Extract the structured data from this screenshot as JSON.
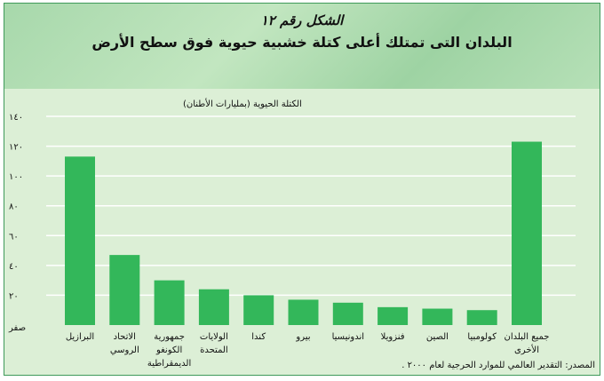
{
  "chart_data": {
    "type": "bar",
    "title": "الشكل رقم ١٢",
    "subtitle": "البلدان التى تمتلك أعلى كتلة خشبية حيوية فوق سطح الأرض",
    "ylabel": "الكتلة الحيوية (بمليارات الأطنان)",
    "ylim": [
      0,
      140
    ],
    "yticks": [
      {
        "value": 0,
        "label": "صفر"
      },
      {
        "value": 20,
        "label": "٢٠"
      },
      {
        "value": 40,
        "label": "٤٠"
      },
      {
        "value": 60,
        "label": "٦٠"
      },
      {
        "value": 80,
        "label": "٨٠"
      },
      {
        "value": 100,
        "label": "١٠٠"
      },
      {
        "value": 120,
        "label": "١٢٠"
      },
      {
        "value": 140,
        "label": "١٤٠"
      }
    ],
    "grid": true,
    "categories": [
      "البرازيل",
      "الاتحاد الروسي",
      "جمهورية الكونغو الديمقراطية",
      "الولايات المتحدة",
      "كندا",
      "بيرو",
      "اندونيسيا",
      "فنزويلا",
      "الصين",
      "كولومبيا",
      "جميع البلدان الأخرى"
    ],
    "category_lines": [
      [
        "البرازيل"
      ],
      [
        "الاتحاد",
        "الروسي"
      ],
      [
        "جمهورية",
        "الكونغو",
        "الديمقراطية"
      ],
      [
        "الولايات",
        "المتحدة"
      ],
      [
        "كندا"
      ],
      [
        "بيرو"
      ],
      [
        "اندونيسيا"
      ],
      [
        "فنزويلا"
      ],
      [
        "الصين"
      ],
      [
        "كولومبيا"
      ],
      [
        "جميع البلدان",
        "الأخرى"
      ]
    ],
    "values": [
      113,
      47,
      30,
      24,
      20,
      17,
      15,
      12,
      11,
      10,
      123
    ],
    "bar_color": "#33b75a",
    "grid_color": "#ffffff"
  },
  "source": "المصدر: التقدير العالمي للموارد الحرجية لعام ٢٠٠٠ ."
}
